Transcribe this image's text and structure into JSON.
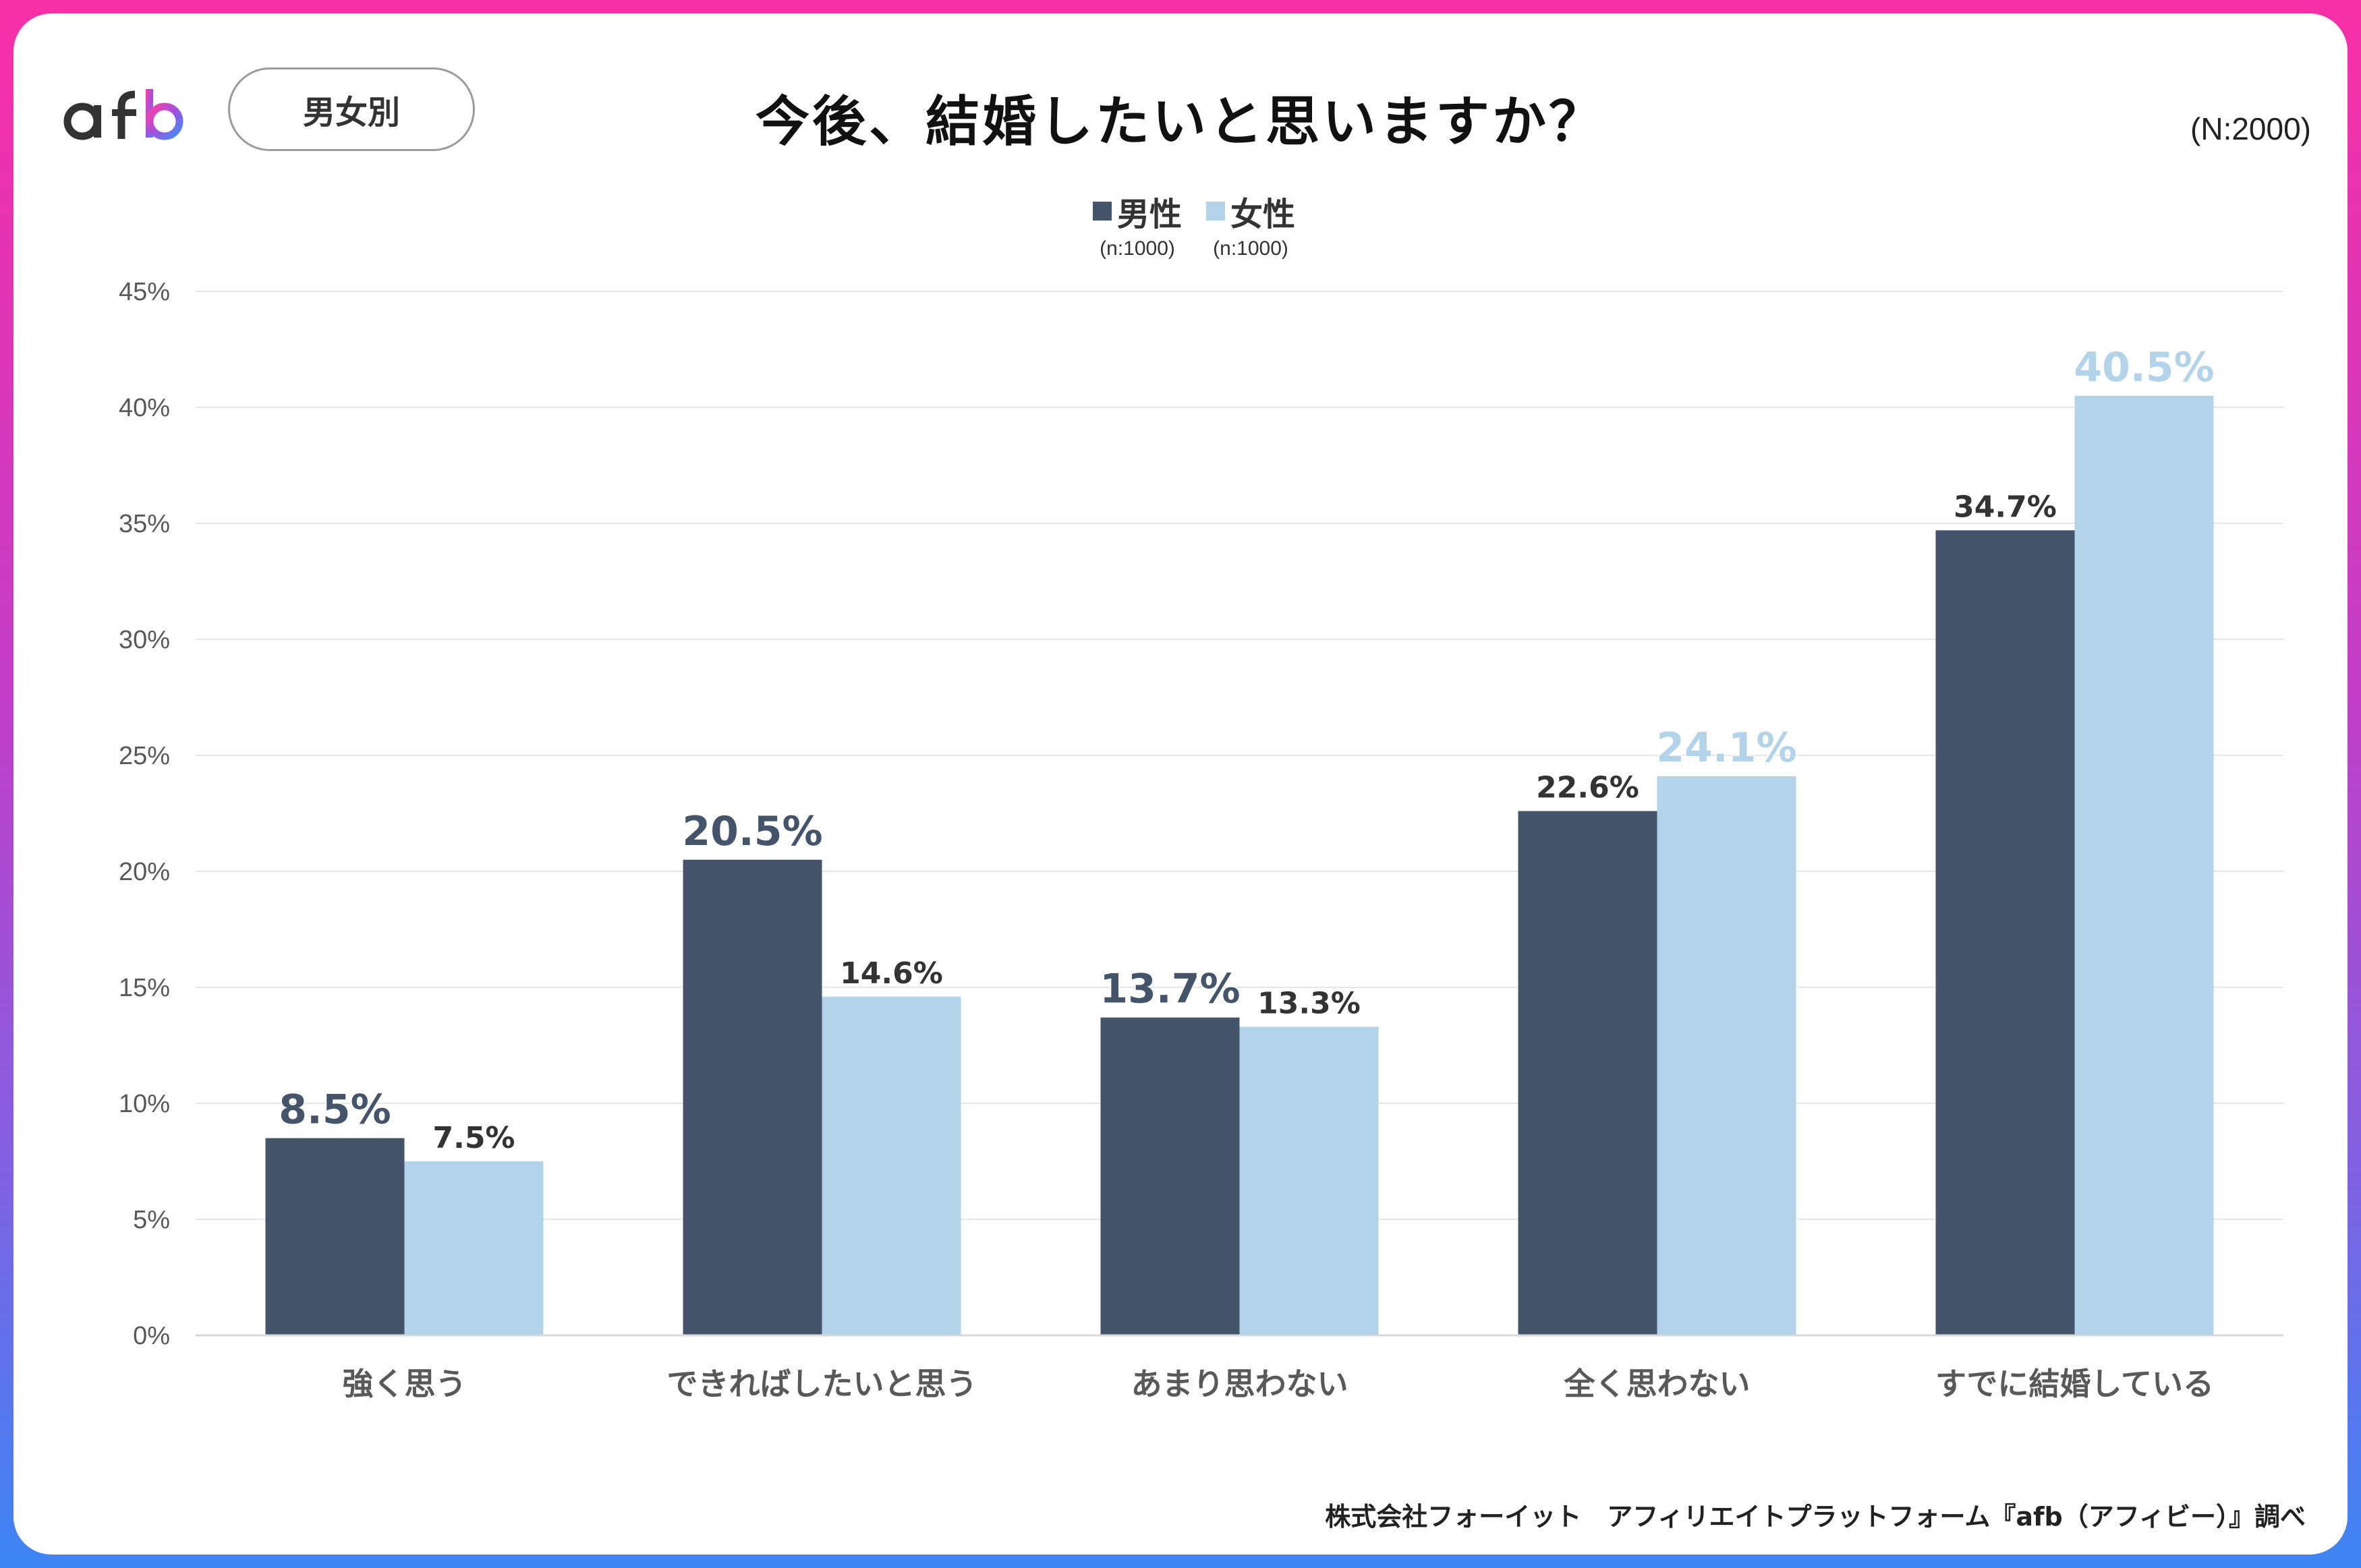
{
  "header": {
    "logo_text": "afb",
    "segment_label": "男女別",
    "title": "今後、結婚したいと思いますか？",
    "sample_total": "(N:2000)"
  },
  "legend": [
    {
      "label": "男性",
      "sub": "(n:1000)",
      "color": "#44546a"
    },
    {
      "label": "女性",
      "sub": "(n:1000)",
      "color": "#b2d3ea"
    }
  ],
  "colors": {
    "male": "#44546a",
    "female": "#b2d3ea",
    "grid": "#e6e6e6",
    "axis_text": "#595959"
  },
  "source_note": "株式会社フォーイット　アフィリエイトプラットフォーム『afb（アフィビー）』調べ",
  "chart_data": {
    "type": "bar",
    "title": "今後、結婚したいと思いますか？",
    "xlabel": "",
    "ylabel": "",
    "ylim": [
      0,
      45
    ],
    "yticks": [
      "0%",
      "5%",
      "10%",
      "15%",
      "20%",
      "25%",
      "30%",
      "35%",
      "40%",
      "45%"
    ],
    "grid": true,
    "legend_position": "top-center",
    "categories": [
      "強く思う",
      "できればしたいと思う",
      "あまり思わない",
      "全く思わない",
      "すでに結婚している"
    ],
    "series": [
      {
        "name": "男性",
        "values": [
          8.5,
          20.5,
          13.7,
          22.6,
          34.7
        ],
        "labels": [
          "8.5%",
          "20.5%",
          "13.7%",
          "22.6%",
          "34.7%"
        ]
      },
      {
        "name": "女性",
        "values": [
          7.5,
          14.6,
          13.3,
          24.1,
          40.5
        ],
        "labels": [
          "7.5%",
          "14.6%",
          "13.3%",
          "24.1%",
          "40.5%"
        ]
      }
    ]
  }
}
